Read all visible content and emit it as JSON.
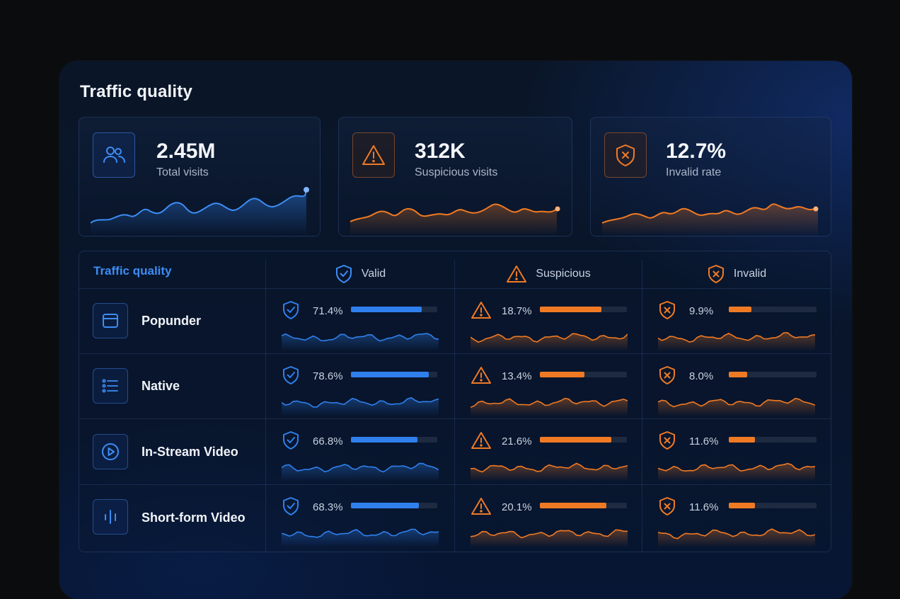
{
  "panel": {
    "title": "Traffic quality"
  },
  "colors": {
    "blue": "#2f80ed",
    "orange": "#f07a24"
  },
  "kpis": [
    {
      "value": "2.45M",
      "label": "Total visits",
      "icon": "users-icon",
      "tone": "blue"
    },
    {
      "value": "312K",
      "label": "Suspicious visits",
      "icon": "warning-icon",
      "tone": "orange"
    },
    {
      "value": "12.7%",
      "label": "Invalid rate",
      "icon": "shield-x-icon",
      "tone": "orange"
    }
  ],
  "table": {
    "title": "Traffic quality",
    "columns": [
      {
        "label": "Valid",
        "icon": "shield-check-icon"
      },
      {
        "label": "Suspicious",
        "icon": "warning-icon"
      },
      {
        "label": "Invalid",
        "icon": "shield-x-icon"
      }
    ],
    "rows": [
      {
        "name": "Popunder",
        "icon": "browser-window-icon",
        "valid": {
          "text": "71.4%",
          "value": 71.4
        },
        "suspicious": {
          "text": "18.7%",
          "value": 18.7
        },
        "invalid": {
          "text": "9.9%",
          "value": 9.9
        }
      },
      {
        "name": "Native",
        "icon": "list-icon",
        "valid": {
          "text": "78.6%",
          "value": 78.6
        },
        "suspicious": {
          "text": "13.4%",
          "value": 13.4
        },
        "invalid": {
          "text": "8.0%",
          "value": 8.0
        }
      },
      {
        "name": "In-Stream Video",
        "icon": "play-circle-icon",
        "valid": {
          "text": "66.8%",
          "value": 66.8
        },
        "suspicious": {
          "text": "21.6%",
          "value": 21.6
        },
        "invalid": {
          "text": "11.6%",
          "value": 11.6
        }
      },
      {
        "name": "Short-form Video",
        "icon": "vertical-bars-icon",
        "valid": {
          "text": "68.3%",
          "value": 68.3
        },
        "suspicious": {
          "text": "20.1%",
          "value": 20.1
        },
        "invalid": {
          "text": "11.6%",
          "value": 11.6
        }
      }
    ]
  }
}
